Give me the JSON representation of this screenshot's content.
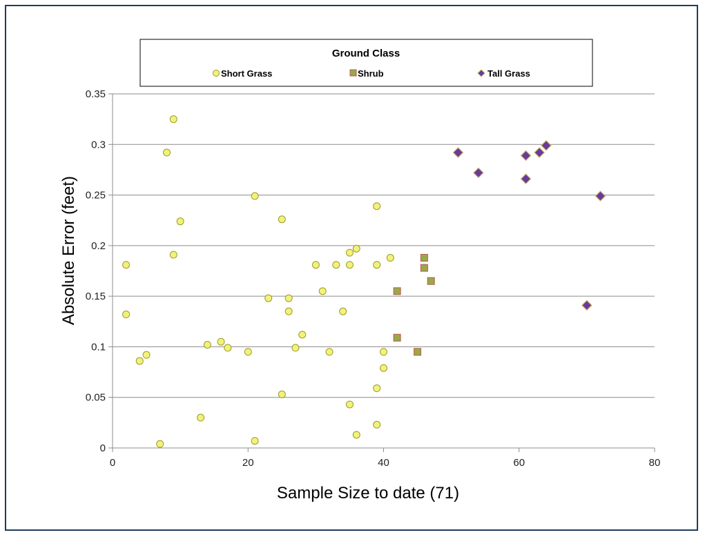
{
  "chart_data": {
    "type": "scatter",
    "xlabel": "Sample Size to date (71)",
    "ylabel": "Absolute Error (feet)",
    "xlim": [
      0,
      80
    ],
    "ylim": [
      0,
      0.35
    ],
    "x_ticks": [
      "0",
      "20",
      "40",
      "60",
      "80"
    ],
    "y_ticks": [
      "0",
      "0.05",
      "0.1",
      "0.15",
      "0.2",
      "0.25",
      "0.3",
      "0.35"
    ],
    "grid": "horizontal",
    "legend": {
      "title": "Ground Class",
      "placement": "top"
    },
    "series": [
      {
        "name": "Short Grass",
        "marker": "circle",
        "color": "#f2f27a",
        "stroke": "#9a9a2a",
        "points": [
          [
            2,
            0.181
          ],
          [
            2,
            0.132
          ],
          [
            4,
            0.086
          ],
          [
            5,
            0.092
          ],
          [
            7,
            0.004
          ],
          [
            8,
            0.292
          ],
          [
            9,
            0.325
          ],
          [
            9,
            0.191
          ],
          [
            10,
            0.224
          ],
          [
            13,
            0.03
          ],
          [
            14,
            0.102
          ],
          [
            16,
            0.105
          ],
          [
            17,
            0.099
          ],
          [
            20,
            0.095
          ],
          [
            21,
            0.249
          ],
          [
            21,
            0.007
          ],
          [
            23,
            0.148
          ],
          [
            25,
            0.226
          ],
          [
            25,
            0.053
          ],
          [
            26,
            0.148
          ],
          [
            26,
            0.135
          ],
          [
            27,
            0.099
          ],
          [
            28,
            0.112
          ],
          [
            30,
            0.181
          ],
          [
            31,
            0.155
          ],
          [
            32,
            0.095
          ],
          [
            33,
            0.181
          ],
          [
            34,
            0.135
          ],
          [
            35,
            0.193
          ],
          [
            35,
            0.181
          ],
          [
            35,
            0.043
          ],
          [
            36,
            0.197
          ],
          [
            36,
            0.013
          ],
          [
            39,
            0.239
          ],
          [
            39,
            0.181
          ],
          [
            39,
            0.059
          ],
          [
            39,
            0.023
          ],
          [
            40,
            0.095
          ],
          [
            40,
            0.079
          ],
          [
            41,
            0.188
          ]
        ]
      },
      {
        "name": "Shrub",
        "marker": "square",
        "color": "#9aa84a",
        "stroke": "#b85a4a",
        "points": [
          [
            42,
            0.155
          ],
          [
            42,
            0.109
          ],
          [
            45,
            0.095
          ],
          [
            46,
            0.188
          ],
          [
            46,
            0.178
          ],
          [
            47,
            0.165
          ]
        ]
      },
      {
        "name": "Tall Grass",
        "marker": "diamond",
        "color": "#6a3a9a",
        "stroke": "#c8b46a",
        "points": [
          [
            51,
            0.292
          ],
          [
            54,
            0.272
          ],
          [
            61,
            0.289
          ],
          [
            61,
            0.266
          ],
          [
            63,
            0.292
          ],
          [
            64,
            0.299
          ],
          [
            70,
            0.141
          ],
          [
            72,
            0.249
          ]
        ]
      }
    ]
  }
}
